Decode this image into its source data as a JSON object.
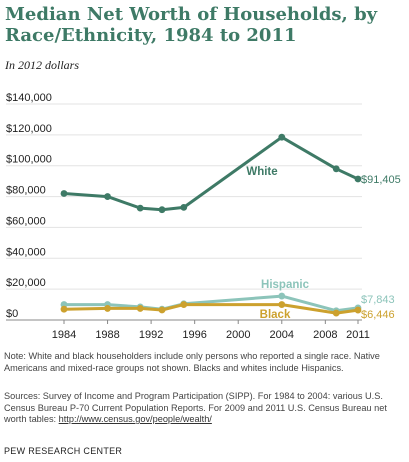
{
  "header": {
    "title": "Median Net Worth of Households, by Race/Ethnicity, 1984 to 2011",
    "subtitle": "In 2012 dollars"
  },
  "chart_data": {
    "type": "line",
    "title": "Median Net Worth of Households, by Race/Ethnicity, 1984 to 2011",
    "subtitle": "In 2012 dollars",
    "ylim": [
      0,
      140000
    ],
    "xlim": [
      1984,
      2011
    ],
    "y_ticks": [
      "$140,000",
      "$120,000",
      "$100,000",
      "$80,000",
      "$60,000",
      "$40,000",
      "$20,000",
      "$0"
    ],
    "y_tick_values": [
      140000,
      120000,
      100000,
      80000,
      60000,
      40000,
      20000,
      0
    ],
    "x_ticks": [
      "1984",
      "1988",
      "1992",
      "1996",
      "2000",
      "2004",
      "2008",
      "2011"
    ],
    "x_tick_values": [
      1984,
      1988,
      1992,
      1996,
      2000,
      2004,
      2008,
      2011
    ],
    "grid": "horizontal",
    "series": [
      {
        "name": "White",
        "color": "#3e7a66",
        "end_label": "$91,405",
        "points": [
          [
            1984,
            82000
          ],
          [
            1988,
            80000
          ],
          [
            1991,
            72500
          ],
          [
            1993,
            71500
          ],
          [
            1995,
            73000
          ],
          [
            2004,
            118500
          ],
          [
            2009,
            98000
          ],
          [
            2011,
            91405
          ]
        ]
      },
      {
        "name": "Hispanic",
        "color": "#8cc4ba",
        "end_label": "$7,843",
        "points": [
          [
            1984,
            10000
          ],
          [
            1988,
            10000
          ],
          [
            1991,
            8500
          ],
          [
            1993,
            7000
          ],
          [
            1995,
            10500
          ],
          [
            2004,
            15500
          ],
          [
            2009,
            6000
          ],
          [
            2011,
            7843
          ]
        ]
      },
      {
        "name": "Black",
        "color": "#cca12e",
        "end_label": "$6,446",
        "points": [
          [
            1984,
            7000
          ],
          [
            1988,
            7500
          ],
          [
            1991,
            7500
          ],
          [
            1993,
            6500
          ],
          [
            1995,
            10000
          ],
          [
            2004,
            10000
          ],
          [
            2009,
            4500
          ],
          [
            2011,
            6446
          ]
        ]
      }
    ]
  },
  "notes": {
    "note": "Note: White and black householders include only persons who reported a single race. Native Americans and mixed-race groups not shown. Blacks and whites include Hispanics.",
    "sources": "Sources: Survey of Income and Program Participation (SIPP). For 1984 to 2004: various U.S. Census Bureau P-70 Current Population Reports. For 2009 and 2011 U.S. Census Bureau net worth tables: ",
    "link": "http://www.census.gov/people/wealth/"
  },
  "footer": {
    "credit": "PEW RESEARCH CENTER"
  }
}
